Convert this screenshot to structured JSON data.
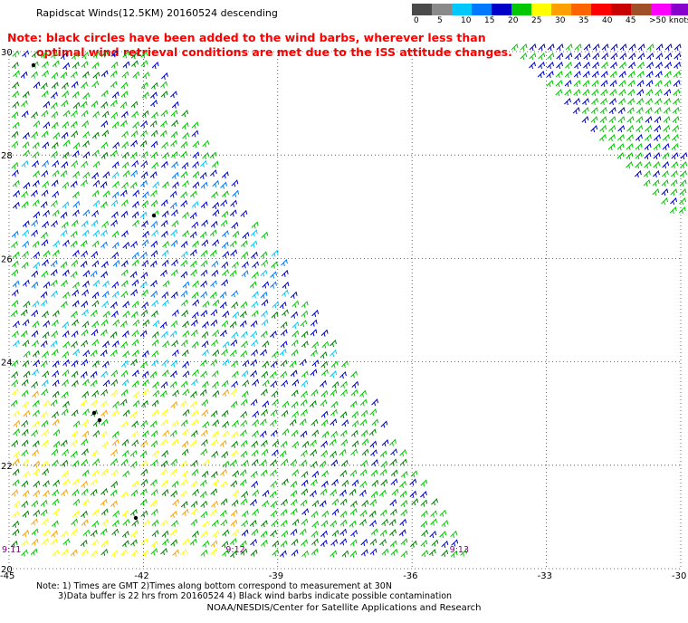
{
  "title": "Rapidscat Winds(12.5KM) 20160524 descending",
  "note_line1": "Note: black circles have been added to the wind barbs, wherever less than",
  "note_line2": "optimal wind retrieval conditions are met due to the ISS attitude changes.",
  "legend": {
    "labels": [
      "0",
      "5",
      "10",
      "15",
      "20",
      "25",
      "30",
      "35",
      "40",
      "45",
      ">50 knots"
    ],
    "colors": [
      "#4a4a4a",
      "#8a8a8a",
      "#00c8ff",
      "#0078ff",
      "#0000c8",
      "#00c800",
      "#ffff00",
      "#ffa000",
      "#ff6400",
      "#ff0000",
      "#c80000",
      "#a05028",
      "#ff00ff",
      "#8800cc",
      "#5a0090"
    ]
  },
  "lat_labels": [
    "30",
    "28",
    "26",
    "24",
    "22",
    "20"
  ],
  "lon_labels": [
    "-45",
    "-42",
    "-39",
    "-36",
    "-33",
    "-30"
  ],
  "time_labels": [
    "9:11",
    "9:12",
    "9:13"
  ],
  "footer_line1": "Note: 1) Times are GMT 2)Times along bottom correspond to measurement at 30N",
  "footer_line2": "3)Data buffer is 22 hrs from 20160524 4) Black wind barbs indicate possible contamination",
  "footer_credit": "NOAA/NESDIS/Center for Satellite Applications and Research",
  "map_data": {
    "lat_range": [
      20,
      30
    ],
    "lon_range": [
      -45,
      -30
    ],
    "grid": true,
    "barb_colors": {
      "blue": "#0000c8",
      "lightblue": "#0078ff",
      "cyan": "#00c8ff",
      "green": "#00c800",
      "darkgreen": "#008000",
      "yellow": "#ffff00",
      "orange": "#ffa000",
      "black": "#000000"
    }
  }
}
